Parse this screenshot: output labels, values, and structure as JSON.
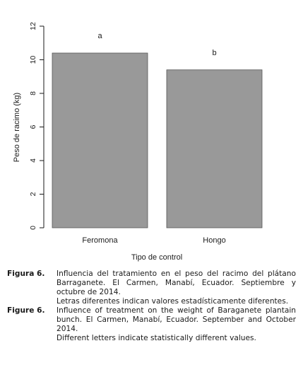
{
  "chart_data": {
    "type": "bar",
    "categories": [
      "Feromona",
      "Hongo"
    ],
    "values": [
      10.4,
      9.4
    ],
    "significance_letters": [
      "a",
      "b"
    ],
    "xlabel": "Tipo de control",
    "ylabel": "Peso de racimo (kg)",
    "ylim": [
      0,
      12
    ],
    "yticks": [
      "0",
      "2",
      "4",
      "6",
      "8",
      "10",
      "12"
    ],
    "grid": false,
    "legend": "none",
    "bar_color": "#999999"
  },
  "captions": [
    {
      "label": "Figura 6.",
      "lines": [
        "Influencia del tratamiento en el peso del racimo del plátano Barraganete. El Carmen, Manabí, Ecuador. Septiembre y octubre de 2014.",
        "Letras diferentes indican valores estadísticamente diferentes."
      ]
    },
    {
      "label": "Figure 6.",
      "lines": [
        "Influence of treatment on the weight of Baraganete plantain bunch. El Carmen, Manabí, Ecuador. September and October 2014.",
        "Different letters indicate statistically different values."
      ]
    }
  ]
}
